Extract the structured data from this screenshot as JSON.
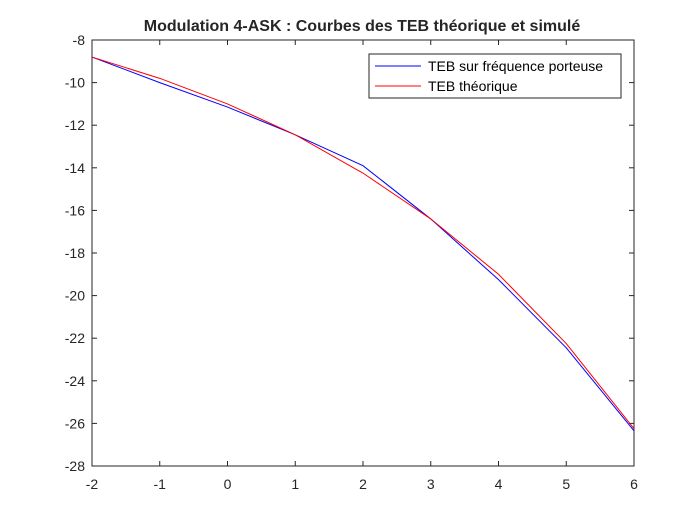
{
  "chart_data": {
    "type": "line",
    "title": "Modulation 4-ASK : Courbes des TEB théorique et simulé",
    "xlabel": "",
    "ylabel": "",
    "xlim": [
      -2,
      6
    ],
    "ylim": [
      -28,
      -8
    ],
    "xticks": [
      -2,
      -1,
      0,
      1,
      2,
      3,
      4,
      5,
      6
    ],
    "yticks": [
      -8,
      -10,
      -12,
      -14,
      -16,
      -18,
      -20,
      -22,
      -24,
      -26,
      -28
    ],
    "grid": false,
    "legend_position": "top-right",
    "x": [
      -2,
      -1,
      0,
      1,
      2,
      3,
      4,
      5,
      6
    ],
    "series": [
      {
        "name": "TEB sur fréquence porteuse",
        "color": "#0000ff",
        "values": [
          -8.8,
          -10.0,
          -11.15,
          -12.45,
          -13.9,
          -16.4,
          -19.25,
          -22.45,
          -26.35
        ]
      },
      {
        "name": "TEB théorique",
        "color": "#ff0000",
        "values": [
          -8.8,
          -9.8,
          -11.0,
          -12.45,
          -14.25,
          -16.4,
          -19.0,
          -22.25,
          -26.25
        ]
      }
    ]
  }
}
